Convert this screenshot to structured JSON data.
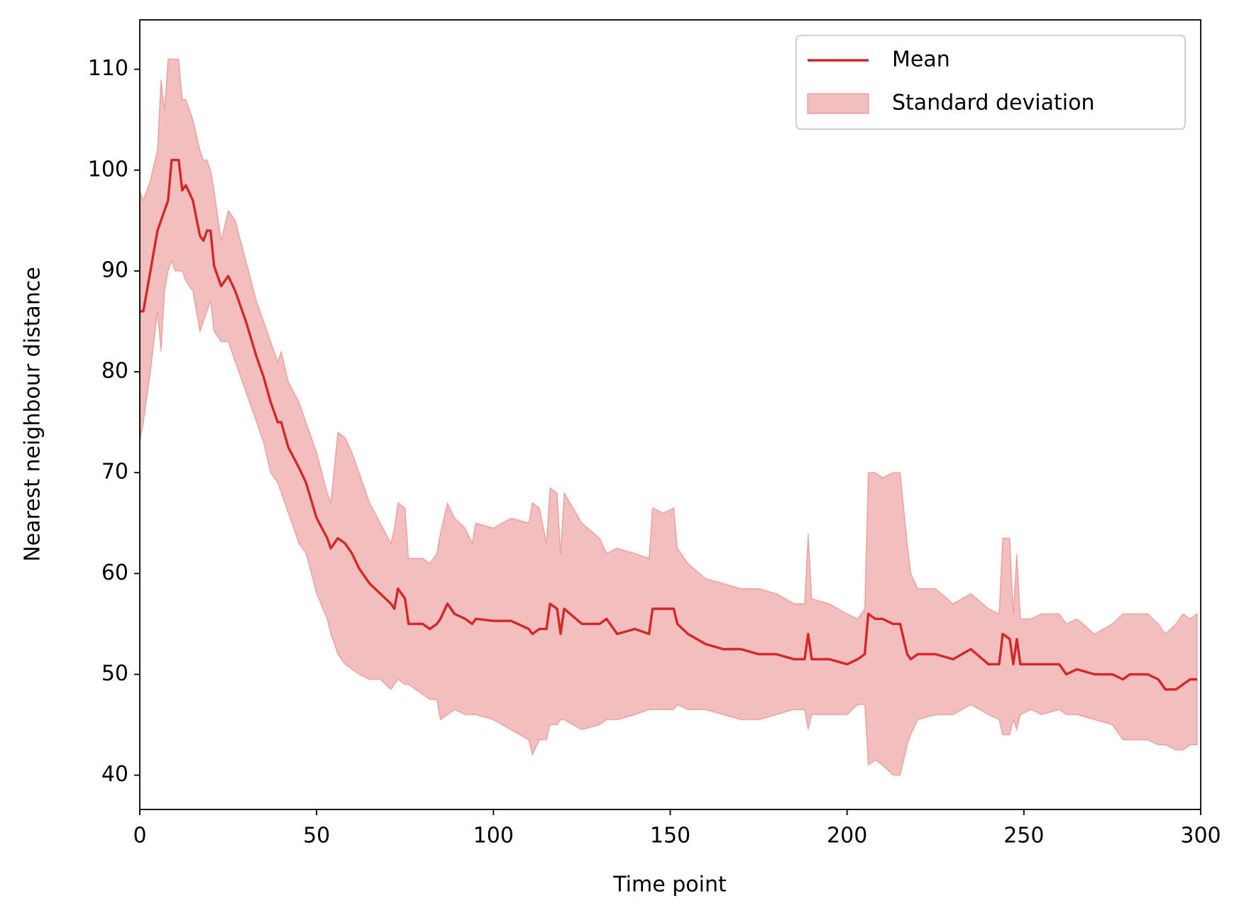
{
  "chart_data": {
    "type": "line",
    "xlabel": "Time point",
    "ylabel": "Nearest neighbour distance",
    "x": [
      0,
      1,
      3,
      5,
      6,
      7,
      8,
      9,
      10,
      11,
      12,
      13,
      15,
      17,
      18,
      19,
      20,
      21,
      23,
      25,
      27,
      30,
      33,
      35,
      37,
      39,
      40,
      42,
      45,
      47,
      50,
      53,
      54,
      56,
      58,
      60,
      62,
      65,
      68,
      71,
      72,
      73,
      75,
      76,
      80,
      82,
      84,
      85,
      87,
      89,
      92,
      94,
      95,
      100,
      105,
      110,
      111,
      113,
      115,
      116,
      118,
      119,
      120,
      125,
      130,
      132,
      135,
      140,
      144,
      145,
      148,
      151,
      152,
      155,
      160,
      165,
      170,
      175,
      180,
      185,
      188,
      189,
      190,
      195,
      200,
      203,
      205,
      206,
      208,
      210,
      213,
      215,
      217,
      218,
      220,
      225,
      230,
      235,
      240,
      243,
      244,
      246,
      247,
      248,
      249,
      252,
      255,
      260,
      262,
      265,
      270,
      275,
      278,
      280,
      285,
      288,
      290,
      293,
      295,
      297,
      299
    ],
    "series": [
      {
        "name": "Mean",
        "color": "#d62728",
        "values": [
          86,
          86,
          90,
          94,
          95,
          96,
          97,
          101,
          101,
          101,
          98,
          98.5,
          97,
          93.5,
          93,
          94,
          94,
          90.5,
          88.5,
          89.5,
          88,
          85,
          81.5,
          79.5,
          77,
          75,
          75,
          72.5,
          70.5,
          69,
          65.5,
          63.5,
          62.5,
          63.5,
          63,
          62,
          60.5,
          59,
          58,
          57,
          56.5,
          58.5,
          57.5,
          55,
          55,
          54.5,
          55,
          55.5,
          57,
          56,
          55.5,
          55,
          55.5,
          55.3,
          55.3,
          54.5,
          54,
          54.5,
          54.5,
          57,
          56.5,
          54,
          56.5,
          55,
          55,
          55.5,
          54,
          54.5,
          54,
          56.5,
          56.5,
          56.5,
          55,
          54,
          53,
          52.5,
          52.5,
          52,
          52,
          51.5,
          51.5,
          54,
          51.5,
          51.5,
          51,
          51.5,
          52,
          56,
          55.5,
          55.5,
          55,
          55,
          52,
          51.5,
          52,
          52,
          51.5,
          52.5,
          51,
          51,
          54,
          53.5,
          51,
          53.5,
          51,
          51,
          51,
          51,
          50,
          50.5,
          50,
          50,
          49.5,
          50,
          50,
          49.5,
          48.5,
          48.5,
          49,
          49.5,
          49.5
        ]
      }
    ],
    "band": {
      "name": "Standard deviation",
      "color": "#d62728",
      "upper": [
        98,
        97,
        99,
        102,
        109,
        106,
        111,
        111,
        111,
        111,
        107,
        107,
        105,
        102,
        101,
        101,
        100,
        98,
        93,
        96,
        95,
        91,
        87,
        85,
        83,
        81,
        82,
        79,
        77,
        75,
        72,
        68,
        67,
        74,
        73.5,
        72,
        70,
        67,
        65,
        63,
        64.5,
        67,
        66.5,
        61.5,
        61.5,
        61,
        62,
        64,
        67,
        65.5,
        64.5,
        63,
        65,
        64.5,
        65.5,
        65,
        67,
        66.5,
        63,
        68.5,
        68,
        62,
        68,
        65,
        63.5,
        62,
        62.5,
        62,
        61.5,
        66.5,
        66,
        66.5,
        62.5,
        61,
        59.5,
        59,
        58.5,
        58.5,
        58,
        57,
        57,
        64,
        57.5,
        57,
        56,
        55.5,
        56.5,
        70,
        70,
        69.5,
        70,
        70,
        63,
        60,
        58.5,
        58.5,
        57,
        58,
        56.5,
        56,
        63.5,
        63.5,
        56,
        62,
        55.5,
        55.5,
        56,
        56,
        55,
        55.5,
        54,
        55,
        56,
        56,
        56,
        55,
        54,
        55,
        56,
        55.5,
        56
      ],
      "lower": [
        73,
        75,
        80,
        86,
        82,
        88,
        90,
        91,
        90,
        90,
        90,
        89,
        88,
        84,
        85,
        86,
        87,
        84,
        83,
        83,
        81,
        78,
        75,
        73,
        70,
        69,
        68,
        66,
        63,
        62,
        58,
        55.5,
        54,
        52,
        51,
        50.5,
        50,
        49.5,
        49.5,
        48.5,
        49,
        49.5,
        49,
        49,
        48,
        47.5,
        47.5,
        45.5,
        46,
        46.5,
        46,
        46,
        46,
        45.5,
        44.5,
        43.5,
        42,
        43.5,
        43.5,
        45,
        45,
        45.5,
        45.5,
        44.5,
        45,
        45.5,
        45.5,
        46,
        46.5,
        46.5,
        46.5,
        46.5,
        47,
        46.5,
        46.5,
        46,
        45.5,
        45.5,
        46,
        46.5,
        46.5,
        44.5,
        46,
        46,
        46,
        47,
        47,
        41,
        41.5,
        41,
        40,
        40,
        43,
        44,
        45.5,
        46,
        46,
        47,
        46,
        45.5,
        44,
        44,
        45.5,
        44.5,
        46,
        46.5,
        46,
        46.5,
        46,
        46,
        45.5,
        45,
        43.5,
        43.5,
        43.5,
        43,
        43,
        42.5,
        42.5,
        43,
        43
      ]
    },
    "xlim": [
      0,
      300
    ],
    "xticks": [
      0,
      50,
      100,
      150,
      200,
      250,
      300
    ],
    "ylim": [
      36.6,
      114.9
    ],
    "yticks": [
      40,
      50,
      60,
      70,
      80,
      90,
      100,
      110
    ],
    "legend": "upper right"
  }
}
